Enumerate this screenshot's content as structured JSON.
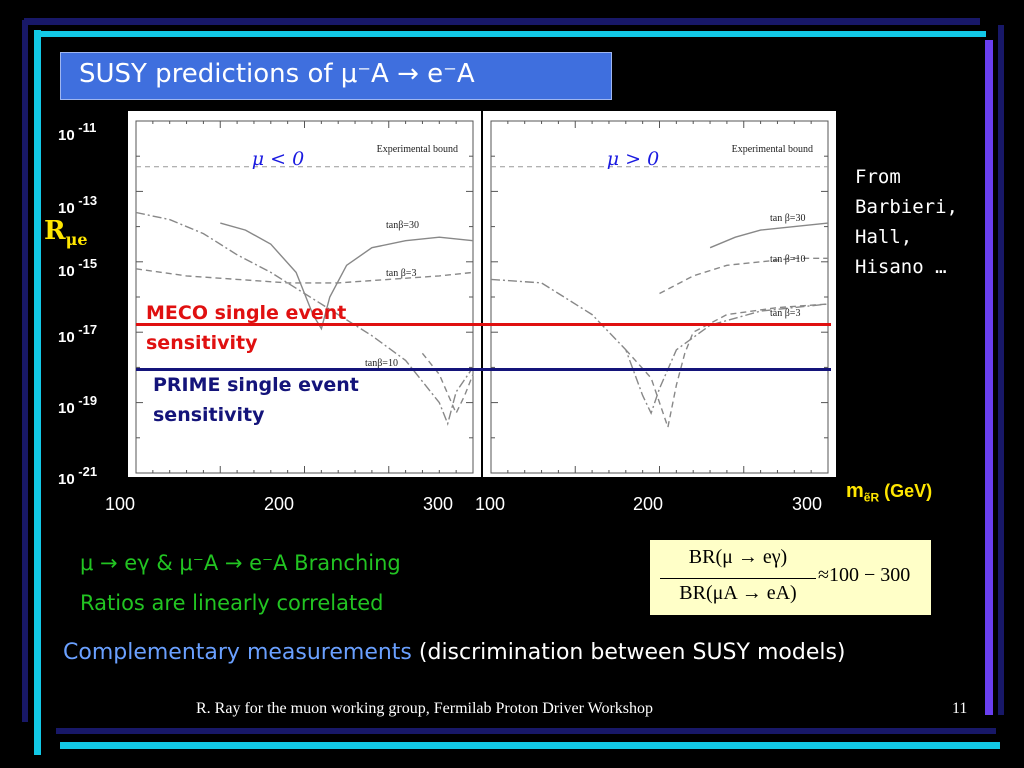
{
  "slide": {
    "title": "SUSY predictions of μ⁻A → e⁻A",
    "attribution": [
      "From",
      "Barbieri,",
      "Hall,",
      "Hisano …"
    ],
    "y_quantity": "R",
    "y_quantity_sub": "μe",
    "x_quantity": "m",
    "x_quantity_sub": "ẽR",
    "x_unit": "(GeV)",
    "meco_label": [
      "MECO single event",
      "sensitivity"
    ],
    "prime_label": [
      "PRIME single event",
      "sensitivity"
    ],
    "correlation_text": [
      "μ → eγ & μ⁻A → e⁻A Branching",
      "Ratios are linearly correlated"
    ],
    "formula": {
      "num": "BR(μ → eγ)",
      "den": "BR(μA → eA)",
      "rhs": "≈100 − 300"
    },
    "complementary": "Complementary measurements",
    "discrimination": "(discrimination between SUSY models)",
    "footer": "R. Ray for the muon working group, Fermilab Proton Driver Workshop",
    "page_number": "11",
    "y_tick_labels": [
      {
        "base": "10",
        "exp": "-11"
      },
      {
        "base": "10",
        "exp": "-13"
      },
      {
        "base": "10",
        "exp": "-15"
      },
      {
        "base": "10",
        "exp": "-17"
      },
      {
        "base": "10",
        "exp": "-19"
      },
      {
        "base": "10",
        "exp": "-21"
      }
    ],
    "x_tick_labels_left": [
      "100",
      "200",
      "300"
    ],
    "x_tick_labels_right": [
      "100",
      "200",
      "300"
    ]
  },
  "colors": {
    "title_bg": "#3f6fde",
    "meco": "#e01010",
    "prime": "#14147a",
    "yellow": "#ffe600",
    "green": "#22c422",
    "formula_bg": "#ffffc8"
  },
  "chart_data": [
    {
      "type": "line",
      "panel_label": "μ < 0",
      "annotation": "Experimental bound",
      "xlim": [
        100,
        300
      ],
      "ylim": [
        -21,
        -11
      ],
      "log_y": true,
      "experimental_bound": -12.3,
      "meco_sensitivity": -16.9,
      "prime_sensitivity": -18.0,
      "series": [
        {
          "name": "tanβ=30",
          "style": "solid",
          "x": [
            150,
            165,
            180,
            195,
            205,
            210,
            215,
            225,
            240,
            260,
            280,
            300
          ],
          "y": [
            -13.9,
            -14.1,
            -14.5,
            -15.3,
            -16.5,
            -16.9,
            -16.0,
            -15.1,
            -14.6,
            -14.4,
            -14.3,
            -14.4
          ]
        },
        {
          "name": "tan β=3",
          "style": "dashed",
          "x": [
            100,
            130,
            160,
            190,
            220,
            250,
            280,
            300
          ],
          "y": [
            -15.2,
            -15.4,
            -15.5,
            -15.6,
            -15.6,
            -15.5,
            -15.4,
            -15.3
          ]
        },
        {
          "name": "tanβ=10",
          "style": "dash-dot",
          "x": [
            100,
            120,
            140,
            160,
            180,
            200,
            220,
            240,
            260,
            280,
            285,
            290,
            300
          ],
          "y": [
            -13.6,
            -13.8,
            -14.2,
            -14.8,
            -15.3,
            -15.9,
            -16.5,
            -17.1,
            -17.8,
            -19.0,
            -19.6,
            -18.7,
            -18.0
          ]
        },
        {
          "name": "",
          "style": "dashed",
          "x": [
            270,
            280,
            290,
            295,
            300
          ],
          "y": [
            -17.6,
            -18.2,
            -19.3,
            -18.8,
            -18.2
          ]
        }
      ]
    },
    {
      "type": "line",
      "panel_label": "μ > 0",
      "annotation": "Experimental bound",
      "xlim": [
        100,
        300
      ],
      "ylim": [
        -21,
        -11
      ],
      "log_y": true,
      "experimental_bound": -12.3,
      "meco_sensitivity": -16.9,
      "prime_sensitivity": -18.0,
      "series": [
        {
          "name": "tan β=30",
          "style": "solid",
          "x": [
            230,
            245,
            260,
            280,
            300
          ],
          "y": [
            -14.6,
            -14.3,
            -14.1,
            -14.0,
            -13.9
          ]
        },
        {
          "name": "tan β=10",
          "style": "dashed",
          "x": [
            200,
            220,
            240,
            260,
            280,
            300
          ],
          "y": [
            -15.9,
            -15.4,
            -15.1,
            -15.0,
            -14.9,
            -14.9
          ]
        },
        {
          "name": "",
          "style": "dash-dot",
          "x": [
            100,
            130,
            160,
            180,
            190,
            195,
            200,
            210,
            230,
            260,
            300
          ],
          "y": [
            -15.5,
            -15.6,
            -16.5,
            -17.5,
            -18.8,
            -19.3,
            -18.6,
            -17.5,
            -16.8,
            -16.4,
            -16.2
          ]
        },
        {
          "name": "tan β=3",
          "style": "dashed",
          "x": [
            180,
            195,
            205,
            210,
            215,
            220,
            240,
            270,
            300
          ],
          "y": [
            -17.5,
            -18.3,
            -19.7,
            -18.5,
            -17.6,
            -17.0,
            -16.5,
            -16.3,
            -16.2
          ]
        }
      ]
    }
  ]
}
